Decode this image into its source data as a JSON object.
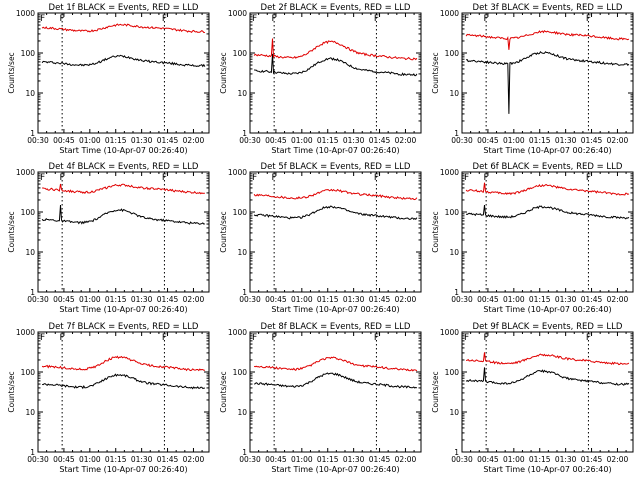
{
  "figure": {
    "xlabel": "Start Time (10-Apr-07 00:26:40)",
    "ylabel": "Counts/sec",
    "x_ticks": [
      "00:30",
      "00:45",
      "01:00",
      "01:15",
      "01:30",
      "01:45",
      "02:00"
    ],
    "y_ticks": [
      "1",
      "10",
      "100",
      "1000"
    ],
    "colors": {
      "events": "#000000",
      "lld": "#e00000",
      "axis": "#000000",
      "background": "#ffffff"
    }
  },
  "chart_data": [
    {
      "type": "line",
      "title": "Det 1f BLACK = Events, RED = LLD",
      "flag_labels": [
        "F",
        "F"
      ],
      "xlim": [
        0.5,
        2.15
      ],
      "ylim": [
        1,
        1000
      ],
      "yscale": "log",
      "markers_x": [
        0.733,
        1.72
      ],
      "series": [
        {
          "name": "Events",
          "color": "#000000",
          "base": 60,
          "amp": 30,
          "spikes": []
        },
        {
          "name": "LLD",
          "color": "#e00000",
          "base": 430,
          "amp": 120,
          "spikes": []
        }
      ]
    },
    {
      "type": "line",
      "title": "Det 2f BLACK = Events, RED = LLD",
      "flag_labels": [
        "F",
        "F"
      ],
      "xlim": [
        0.5,
        2.15
      ],
      "ylim": [
        1,
        1000
      ],
      "yscale": "log",
      "markers_x": [
        0.733,
        1.72
      ],
      "series": [
        {
          "name": "Events",
          "color": "#000000",
          "base": 36,
          "amp": 40,
          "spikes": [
            {
              "x": 0.72,
              "y": 95
            }
          ]
        },
        {
          "name": "LLD",
          "color": "#e00000",
          "base": 90,
          "amp": 110,
          "spikes": [
            {
              "x": 0.72,
              "y": 230
            }
          ]
        }
      ]
    },
    {
      "type": "line",
      "title": "Det 3f BLACK = Events, RED = LLD",
      "flag_labels": [
        "F",
        "F"
      ],
      "xlim": [
        0.5,
        2.15
      ],
      "ylim": [
        1,
        1000
      ],
      "yscale": "log",
      "markers_x": [
        0.733,
        1.72
      ],
      "series": [
        {
          "name": "Events",
          "color": "#000000",
          "base": 65,
          "amp": 45,
          "spikes": [
            {
              "x": 0.95,
              "y": 3
            }
          ]
        },
        {
          "name": "LLD",
          "color": "#e00000",
          "base": 280,
          "amp": 90,
          "spikes": [
            {
              "x": 0.95,
              "y": 120
            }
          ]
        }
      ]
    },
    {
      "type": "line",
      "title": "Det 4f BLACK = Events, RED = LLD",
      "flag_labels": [
        "F",
        "F"
      ],
      "xlim": [
        0.5,
        2.15
      ],
      "ylim": [
        1,
        1000
      ],
      "yscale": "log",
      "markers_x": [
        0.733,
        1.72
      ],
      "series": [
        {
          "name": "Events",
          "color": "#000000",
          "base": 65,
          "amp": 55,
          "spikes": [
            {
              "x": 0.72,
              "y": 150
            }
          ]
        },
        {
          "name": "LLD",
          "color": "#e00000",
          "base": 380,
          "amp": 130,
          "spikes": [
            {
              "x": 0.72,
              "y": 500
            }
          ]
        }
      ]
    },
    {
      "type": "line",
      "title": "Det 5f BLACK = Events, RED = LLD",
      "flag_labels": [
        "F",
        "F"
      ],
      "xlim": [
        0.5,
        2.15
      ],
      "ylim": [
        1,
        1000
      ],
      "yscale": "log",
      "markers_x": [
        0.733,
        1.72
      ],
      "series": [
        {
          "name": "Events",
          "color": "#000000",
          "base": 85,
          "amp": 60,
          "spikes": []
        },
        {
          "name": "LLD",
          "color": "#e00000",
          "base": 270,
          "amp": 110,
          "spikes": []
        }
      ]
    },
    {
      "type": "line",
      "title": "Det 6f BLACK = Events, RED = LLD",
      "flag_labels": [
        "F",
        "F"
      ],
      "xlim": [
        0.5,
        2.15
      ],
      "ylim": [
        1,
        1000
      ],
      "yscale": "log",
      "markers_x": [
        0.733,
        1.72
      ],
      "series": [
        {
          "name": "Events",
          "color": "#000000",
          "base": 90,
          "amp": 55,
          "spikes": [
            {
              "x": 0.72,
              "y": 150
            }
          ]
        },
        {
          "name": "LLD",
          "color": "#e00000",
          "base": 350,
          "amp": 150,
          "spikes": [
            {
              "x": 0.72,
              "y": 540
            }
          ]
        }
      ]
    },
    {
      "type": "line",
      "title": "Det 7f BLACK = Events, RED = LLD",
      "flag_labels": [
        "F",
        "F"
      ],
      "xlim": [
        0.5,
        2.15
      ],
      "ylim": [
        1,
        1000
      ],
      "yscale": "log",
      "markers_x": [
        0.733,
        1.72
      ],
      "series": [
        {
          "name": "Events",
          "color": "#000000",
          "base": 50,
          "amp": 40,
          "spikes": []
        },
        {
          "name": "LLD",
          "color": "#e00000",
          "base": 140,
          "amp": 110,
          "spikes": []
        }
      ]
    },
    {
      "type": "line",
      "title": "Det 8f BLACK = Events, RED = LLD",
      "flag_labels": [
        "F",
        "F"
      ],
      "xlim": [
        0.5,
        2.15
      ],
      "ylim": [
        1,
        1000
      ],
      "yscale": "log",
      "markers_x": [
        0.733,
        1.72
      ],
      "series": [
        {
          "name": "Events",
          "color": "#000000",
          "base": 52,
          "amp": 45,
          "spikes": []
        },
        {
          "name": "LLD",
          "color": "#e00000",
          "base": 140,
          "amp": 100,
          "spikes": []
        }
      ]
    },
    {
      "type": "line",
      "title": "Det 9f BLACK = Events, RED = LLD",
      "flag_labels": [
        "F",
        "F"
      ],
      "xlim": [
        0.5,
        2.15
      ],
      "ylim": [
        1,
        1000
      ],
      "yscale": "log",
      "markers_x": [
        0.733,
        1.72
      ],
      "series": [
        {
          "name": "Events",
          "color": "#000000",
          "base": 62,
          "amp": 50,
          "spikes": [
            {
              "x": 0.72,
              "y": 130
            }
          ]
        },
        {
          "name": "LLD",
          "color": "#e00000",
          "base": 200,
          "amp": 90,
          "spikes": [
            {
              "x": 0.72,
              "y": 310
            }
          ]
        }
      ]
    }
  ]
}
